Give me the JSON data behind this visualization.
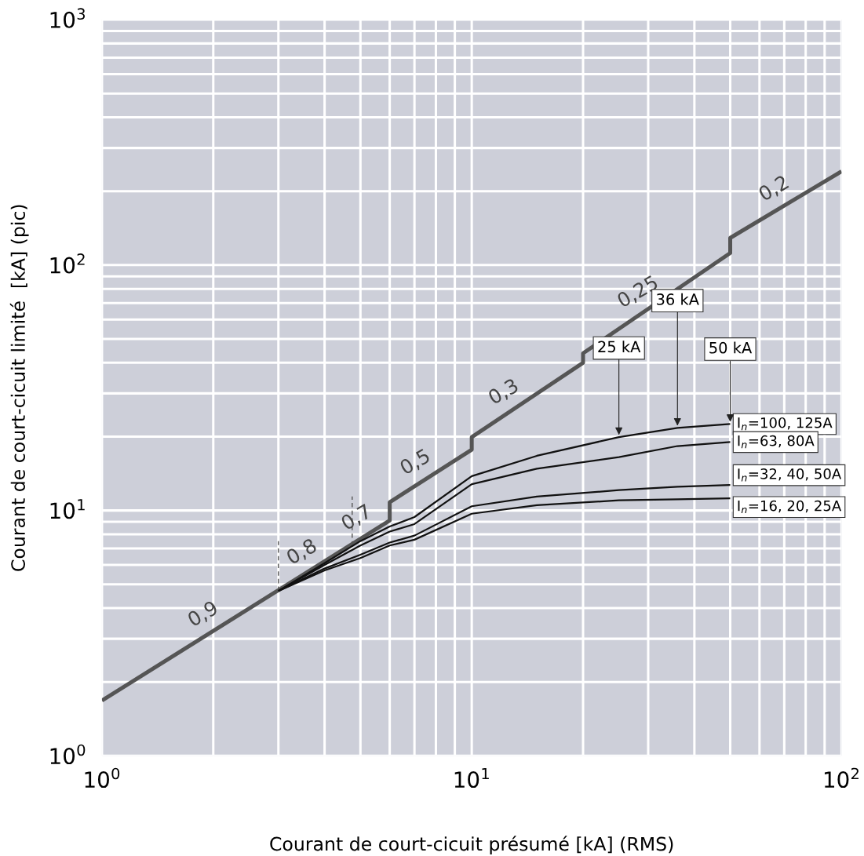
{
  "chart_data": {
    "type": "line",
    "xlabel": "Courant de court-cicuit présumé [kA] (RMS)",
    "ylabel": "Courant de court-cicuit limité  [kA] (pic)",
    "log": "xy",
    "grid": true,
    "legend": false,
    "marker": "none",
    "xlim": [
      1,
      100
    ],
    "ylim": [
      1,
      1000
    ],
    "xticks": [
      {
        "value": 1,
        "label": "10$^{0}$"
      },
      {
        "value": 10,
        "label": "10$^{1}$"
      },
      {
        "value": 100,
        "label": "10$^{2}$"
      }
    ],
    "yticks": [
      {
        "value": 1,
        "label": "10$^{0}$"
      },
      {
        "value": 10,
        "label": "10$^{1}$"
      },
      {
        "value": 100,
        "label": "10$^{2}$"
      },
      {
        "value": 1000,
        "label": "10$^{3}$"
      }
    ],
    "series": [
      {
        "color": "#555555",
        "x": [
          1,
          6,
          6,
          10,
          10,
          20,
          20,
          50,
          50,
          100
        ],
        "values": [
          1.68,
          9.1,
          10.8,
          17.7,
          19.9,
          40,
          43.7,
          112,
          129,
          241
        ]
      },
      {
        "color": "#555555",
        "line_style": "dashed",
        "x": [
          3,
          3
        ],
        "values": [
          4.7,
          7.5
        ]
      },
      {
        "color": "#555555",
        "line_style": "dashed",
        "x": [
          4.75,
          4.75
        ],
        "values": [
          7.2,
          11.4
        ]
      },
      {
        "name": "I$_{n}$=100, 125A",
        "color": "#111111",
        "x": [
          3,
          4,
          5,
          6,
          7,
          10,
          15,
          25,
          36,
          50
        ],
        "values": [
          4.7,
          6.1,
          7.5,
          8.6,
          9.4,
          13.8,
          16.7,
          19.9,
          21.7,
          22.5
        ]
      },
      {
        "name": "I$_{n}$=63, 80A",
        "color": "#111111",
        "x": [
          3,
          4,
          5,
          6,
          7,
          10,
          15,
          25,
          36,
          50
        ],
        "values": [
          4.7,
          6.0,
          7.2,
          8.2,
          8.8,
          12.8,
          14.8,
          16.5,
          18.3,
          19.0
        ]
      },
      {
        "name": "I$_{n}$=32, 40, 50A",
        "color": "#111111",
        "x": [
          3,
          4,
          5,
          6,
          7,
          10,
          15,
          25,
          36,
          50
        ],
        "values": [
          4.7,
          5.8,
          6.6,
          7.4,
          7.9,
          10.4,
          11.4,
          12.1,
          12.5,
          12.7
        ]
      },
      {
        "name": "I$_{n}$=16, 20, 25A",
        "color": "#111111",
        "x": [
          3,
          4,
          5,
          6,
          7,
          10,
          15,
          25,
          36,
          50
        ],
        "values": [
          4.7,
          5.7,
          6.4,
          7.2,
          7.6,
          9.7,
          10.5,
          11.0,
          11.1,
          11.2
        ]
      }
    ],
    "annotations": [
      {
        "text": "0,9",
        "x": 2,
        "y": 3.22
      },
      {
        "text": "0,8",
        "x": 3.7,
        "y": 5.77
      },
      {
        "text": "0,7",
        "x": 5.2,
        "y": 7.96
      },
      {
        "text": "0,5",
        "x": 7.5,
        "y": 13.4
      },
      {
        "text": "0,3",
        "x": 13,
        "y": 25.9
      },
      {
        "text": "0,25",
        "x": 30,
        "y": 66.2
      },
      {
        "text": "0,2",
        "x": 70,
        "y": 174.6
      },
      {
        "text": "25 kA",
        "x": 25,
        "y": 19.9
      },
      {
        "text": "36 kA",
        "x": 36,
        "y": 21.7
      },
      {
        "text": "50 kA",
        "x": 50,
        "y": 22.5
      }
    ]
  }
}
